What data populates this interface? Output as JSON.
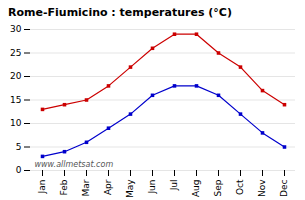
{
  "chart_data": {
    "type": "line",
    "title": "Rome-Fiumicino : temperatures (°C)",
    "categories": [
      "Jan",
      "Feb",
      "Mar",
      "Apr",
      "May",
      "Jun",
      "Jul",
      "Aug",
      "Sep",
      "Oct",
      "Nov",
      "Dec"
    ],
    "series": [
      {
        "color": "#cc0000",
        "marker": "square",
        "values": [
          13,
          14,
          15,
          18,
          22,
          26,
          29,
          29,
          25,
          22,
          17,
          14
        ]
      },
      {
        "color": "#0000cc",
        "marker": "square",
        "values": [
          3,
          4,
          6,
          9,
          12,
          16,
          18,
          18,
          16,
          12,
          8,
          5
        ]
      }
    ],
    "ylim": [
      0,
      30
    ],
    "yticks": [
      0,
      5,
      10,
      15,
      20,
      25,
      30
    ],
    "grid": true,
    "annotations": [
      "www.allmetsat.com"
    ]
  }
}
